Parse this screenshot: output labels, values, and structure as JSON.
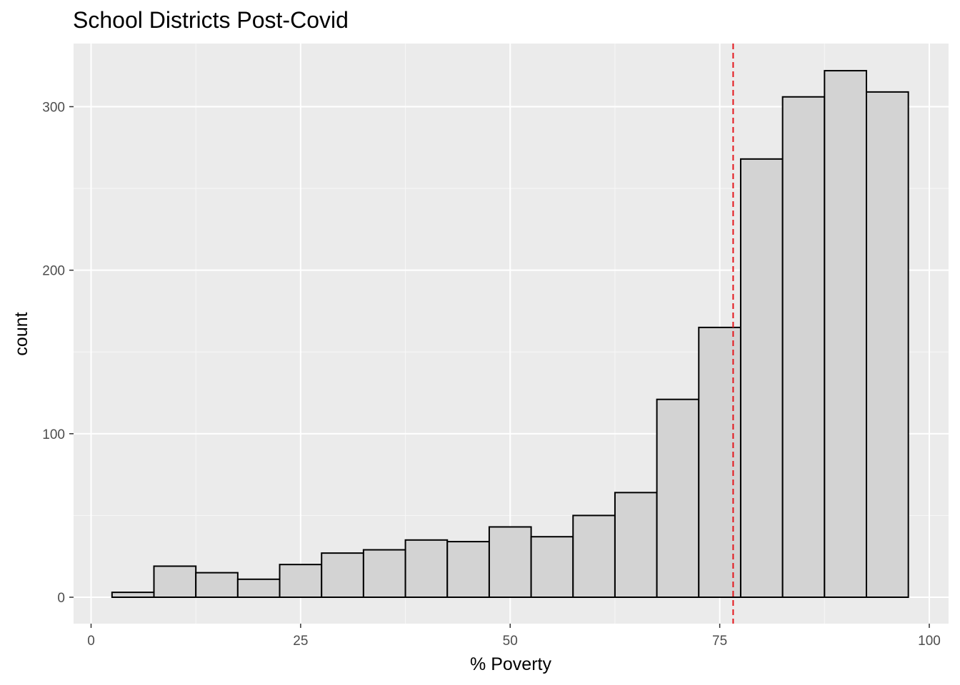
{
  "chart_data": {
    "type": "bar",
    "title": "School Districts Post-Covid",
    "xlabel": "% Poverty",
    "ylabel": "count",
    "xlim": [
      -1.5,
      102
    ],
    "ylim": [
      -15,
      335
    ],
    "x_ticks": [
      0,
      25,
      50,
      75,
      100
    ],
    "x_tick_labels": [
      "0",
      "25",
      "50",
      "75",
      "100"
    ],
    "y_ticks": [
      0,
      100,
      200,
      300
    ],
    "y_tick_labels": [
      "0",
      "100",
      "200",
      "300"
    ],
    "bin_width": 5,
    "bins": [
      {
        "start": 2.5,
        "end": 7.5,
        "count": 3
      },
      {
        "start": 7.5,
        "end": 12.5,
        "count": 19
      },
      {
        "start": 12.5,
        "end": 17.5,
        "count": 15
      },
      {
        "start": 17.5,
        "end": 22.5,
        "count": 11
      },
      {
        "start": 22.5,
        "end": 27.5,
        "count": 20
      },
      {
        "start": 27.5,
        "end": 32.5,
        "count": 27
      },
      {
        "start": 32.5,
        "end": 37.5,
        "count": 29
      },
      {
        "start": 37.5,
        "end": 42.5,
        "count": 35
      },
      {
        "start": 42.5,
        "end": 47.5,
        "count": 34
      },
      {
        "start": 47.5,
        "end": 52.5,
        "count": 43
      },
      {
        "start": 52.5,
        "end": 57.5,
        "count": 37
      },
      {
        "start": 57.5,
        "end": 62.5,
        "count": 50
      },
      {
        "start": 62.5,
        "end": 67.5,
        "count": 64
      },
      {
        "start": 67.5,
        "end": 72.5,
        "count": 121
      },
      {
        "start": 72.5,
        "end": 77.5,
        "count": 165
      },
      {
        "start": 77.5,
        "end": 82.5,
        "count": 268
      },
      {
        "start": 82.5,
        "end": 87.5,
        "count": 306
      },
      {
        "start": 87.5,
        "end": 92.5,
        "count": 322
      },
      {
        "start": 92.5,
        "end": 97.5,
        "count": 309
      }
    ],
    "reference_line": {
      "x": 76.6,
      "style": "dashed",
      "color": "#e4161c"
    },
    "grid": true,
    "colors": {
      "panel_background": "#ebebeb",
      "grid_major": "#ffffff",
      "grid_minor": "#f7f7f7",
      "bar_fill": "#d3d3d3",
      "bar_stroke": "#000000",
      "tick_text": "#4d4d4d",
      "tick_mark": "#333333"
    }
  }
}
